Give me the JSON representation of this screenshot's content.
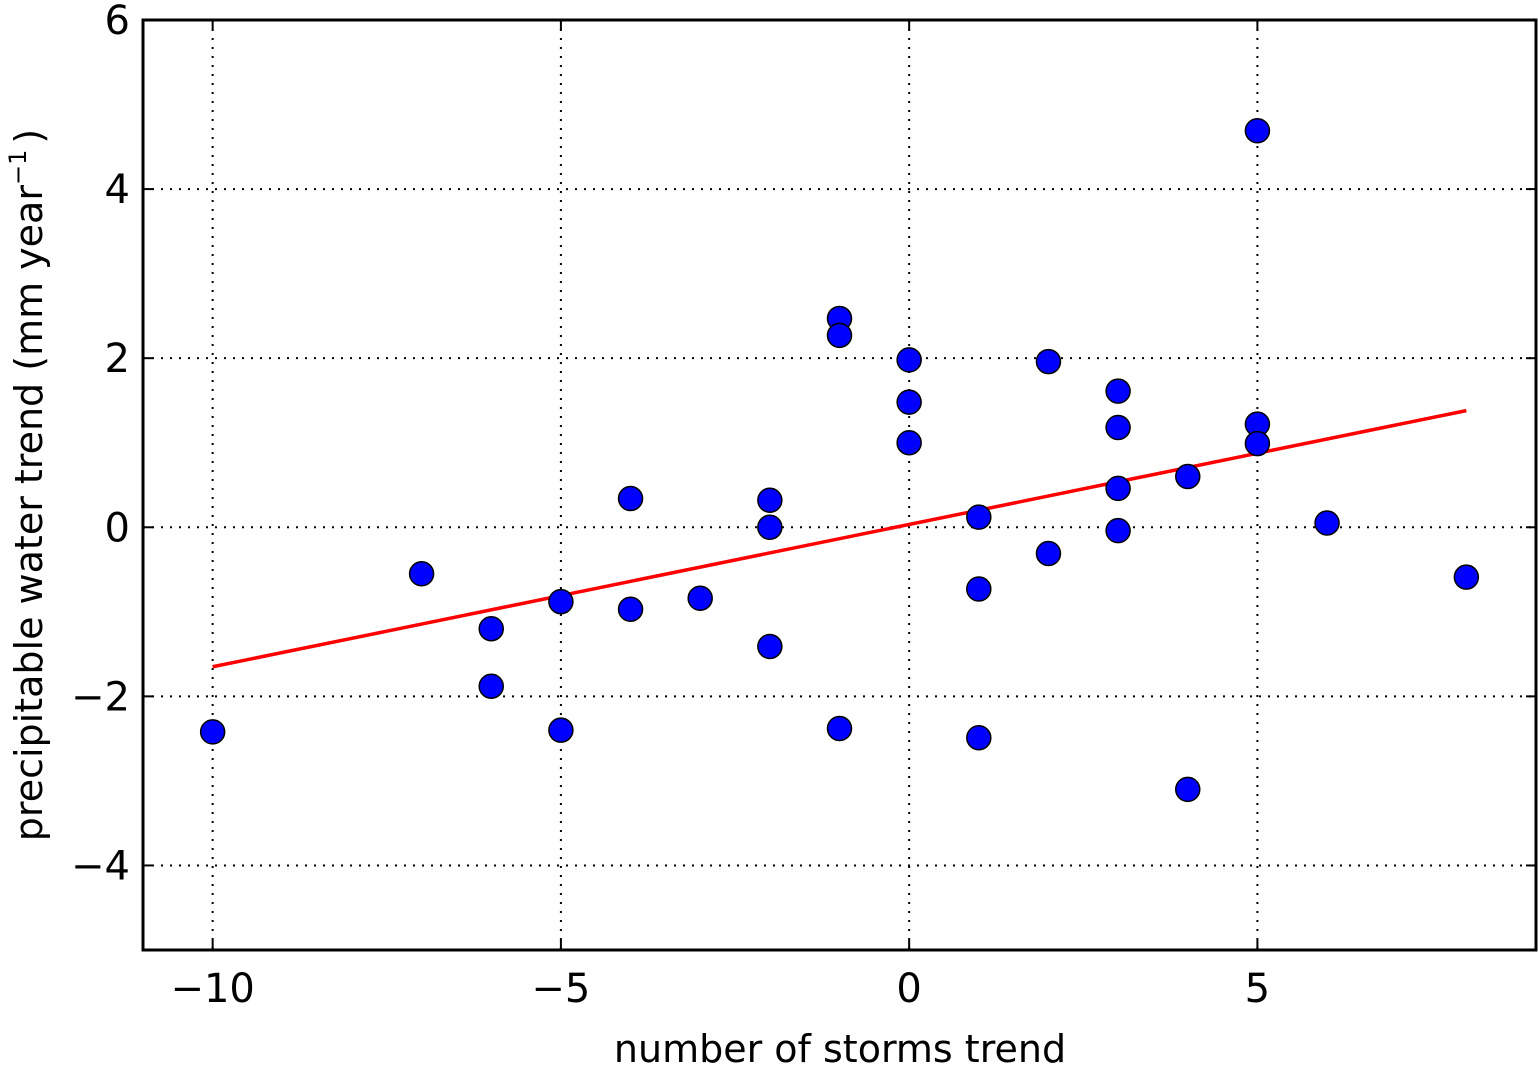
{
  "chart_data": {
    "type": "scatter",
    "xlabel": "number of storms trend",
    "ylabel": {
      "main": "precipitable water trend (mm year",
      "sup": "−1",
      "close": ")"
    },
    "xlim": [
      -11,
      9
    ],
    "ylim": [
      -5,
      6
    ],
    "xticks": [
      -10,
      -5,
      0,
      5
    ],
    "xtick_labels": [
      "−10",
      "−5",
      "0",
      "5"
    ],
    "yticks": [
      -4,
      -2,
      0,
      2,
      4,
      6
    ],
    "ytick_labels": [
      "−4",
      "−2",
      "0",
      "2",
      "4",
      "6"
    ],
    "grid": true,
    "points": [
      {
        "x": -10,
        "y": -2.42
      },
      {
        "x": -7,
        "y": -0.55
      },
      {
        "x": -6,
        "y": -1.2
      },
      {
        "x": -6,
        "y": -1.88
      },
      {
        "x": -5,
        "y": -0.88
      },
      {
        "x": -5,
        "y": -2.4
      },
      {
        "x": -4,
        "y": 0.34
      },
      {
        "x": -4,
        "y": -0.97
      },
      {
        "x": -3,
        "y": -0.84
      },
      {
        "x": -2,
        "y": 0.32
      },
      {
        "x": -2,
        "y": 0.0
      },
      {
        "x": -2,
        "y": -1.41
      },
      {
        "x": -1,
        "y": 2.47
      },
      {
        "x": -1,
        "y": 2.27
      },
      {
        "x": -1,
        "y": -2.38
      },
      {
        "x": 0,
        "y": 1.98
      },
      {
        "x": 0,
        "y": 1.48
      },
      {
        "x": 0,
        "y": 1.0
      },
      {
        "x": 1,
        "y": 0.12
      },
      {
        "x": 1,
        "y": -0.73
      },
      {
        "x": 1,
        "y": -2.49
      },
      {
        "x": 2,
        "y": 1.96
      },
      {
        "x": 2,
        "y": -0.31
      },
      {
        "x": 3,
        "y": 1.61
      },
      {
        "x": 3,
        "y": 1.18
      },
      {
        "x": 3,
        "y": 0.46
      },
      {
        "x": 3,
        "y": -0.04
      },
      {
        "x": 4,
        "y": 0.6
      },
      {
        "x": 4,
        "y": -3.1
      },
      {
        "x": 5,
        "y": 4.69
      },
      {
        "x": 5,
        "y": 1.22
      },
      {
        "x": 5,
        "y": 0.99
      },
      {
        "x": 6,
        "y": 0.05
      },
      {
        "x": 8,
        "y": -0.59
      }
    ],
    "trendline": {
      "x": [
        -10,
        8
      ],
      "y": [
        -1.65,
        1.38
      ]
    },
    "colors": {
      "points": "#0000ff",
      "point_edge": "#000000",
      "trendline": "#ff0000",
      "grid": "#000000"
    }
  }
}
